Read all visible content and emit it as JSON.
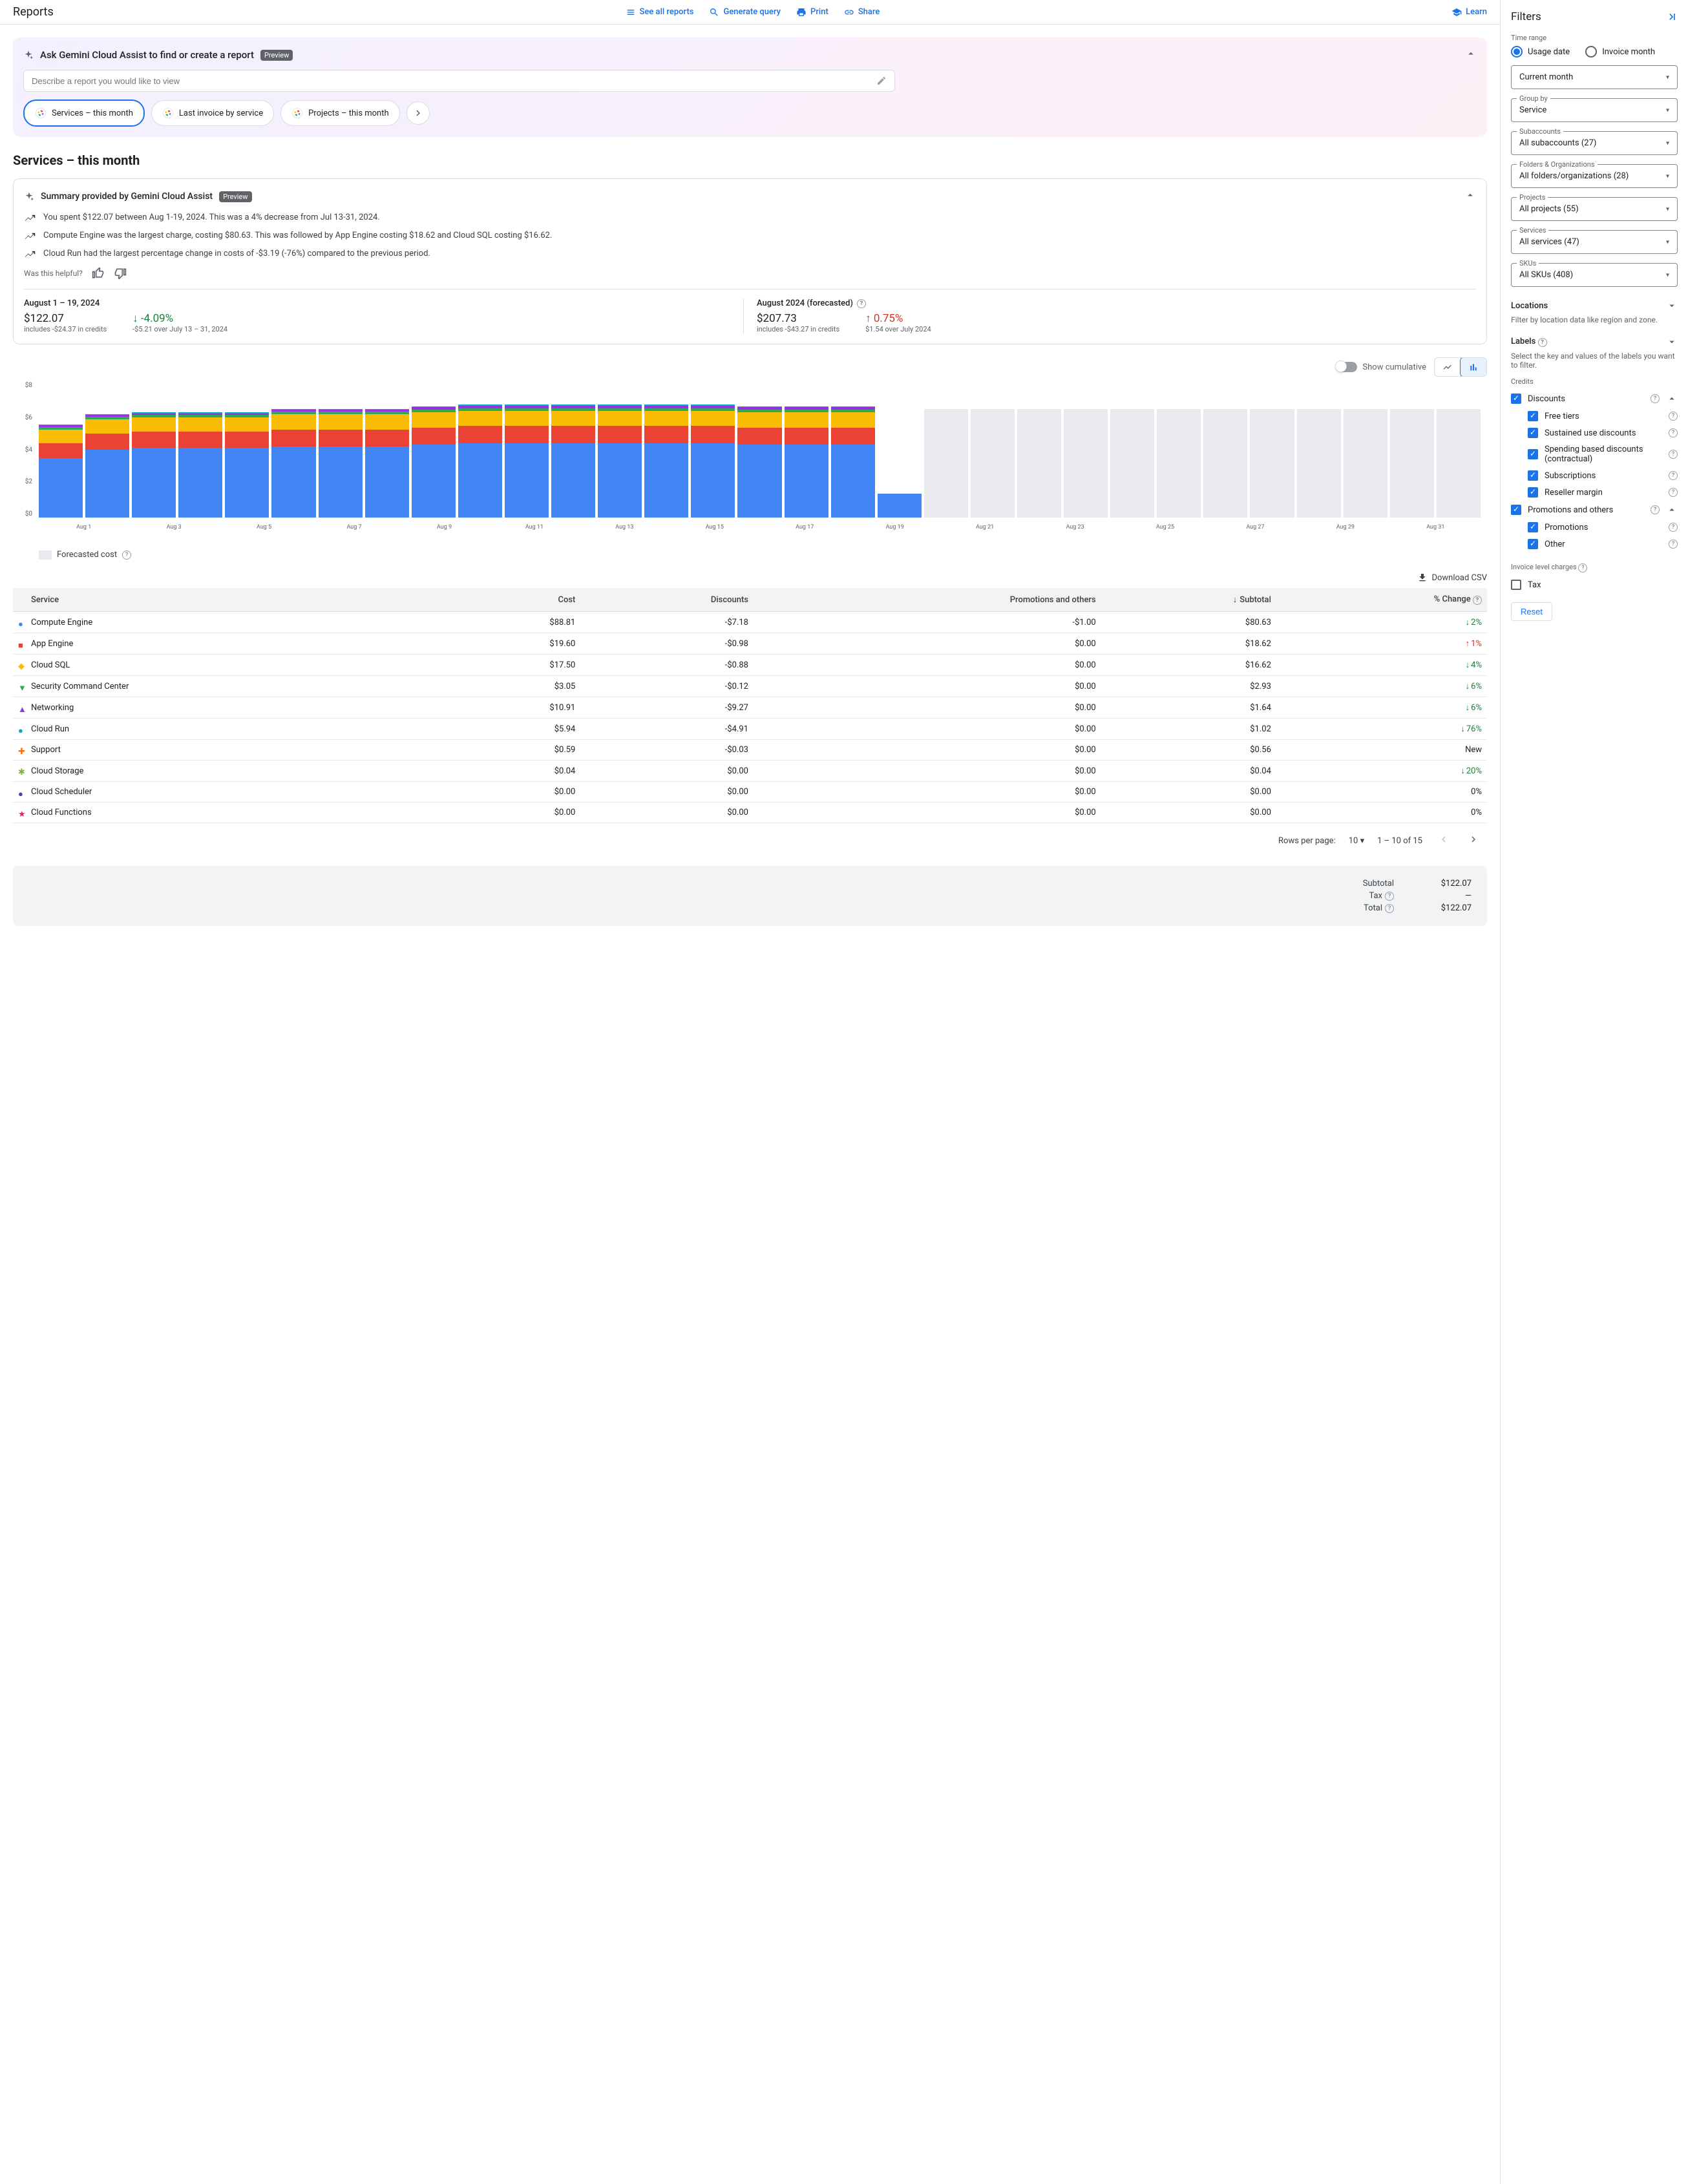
{
  "header": {
    "title": "Reports",
    "see_all": "See all reports",
    "generate": "Generate query",
    "print": "Print",
    "share": "Share",
    "learn": "Learn"
  },
  "gemini": {
    "title": "Ask Gemini Cloud Assist to find or create a report",
    "preview": "Preview",
    "placeholder": "Describe a report you would like to view",
    "chip1": "Services – this month",
    "chip2": "Last invoice by service",
    "chip3": "Projects – this month"
  },
  "page_title": "Services – this month",
  "summary": {
    "title": "Summary provided by Gemini Cloud Assist",
    "preview": "Preview",
    "insight1": "You spent $122.07 between Aug 1-19, 2024. This was a 4% decrease from Jul 13-31, 2024.",
    "insight2": "Compute Engine was the largest charge, costing $80.63. This was followed by App Engine costing $18.62 and Cloud SQL costing $16.62.",
    "insight3": "Cloud Run had the largest percentage change in costs of -$3.19 (-76%) compared to the previous period.",
    "helpful": "Was this helpful?"
  },
  "stats": {
    "period1_label": "August 1 – 19, 2024",
    "period1_value": "$122.07",
    "period1_sub": "includes -$24.37 in credits",
    "period1_change": "-4.09%",
    "period1_change_sub": "-$5.21 over July 13 – 31, 2024",
    "period2_label": "August 2024 (forecasted)",
    "period2_value": "$207.73",
    "period2_sub": "includes -$43.27 in credits",
    "period2_change": "0.75%",
    "period2_change_sub": "$1.54 over July 2024"
  },
  "chart": {
    "cumulative_label": "Show cumulative",
    "y_max": 8,
    "y_ticks": [
      "$8",
      "$6",
      "$4",
      "$2",
      "$0"
    ],
    "x_labels": [
      "Aug 1",
      "Aug 3",
      "Aug 5",
      "Aug 7",
      "Aug 9",
      "Aug 11",
      "Aug 13",
      "Aug 15",
      "Aug 17",
      "Aug 19",
      "Aug 21",
      "Aug 23",
      "Aug 25",
      "Aug 27",
      "Aug 29",
      "Aug 31"
    ],
    "colors": {
      "compute": "#4285f4",
      "appengine": "#ea4335",
      "cloudsql": "#fbbc04",
      "security": "#34a853",
      "networking": "#9334e6",
      "other": "#00acc1",
      "forecast": "#e8eaed"
    },
    "bars": [
      {
        "segs": [
          3.5,
          0.9,
          0.8,
          0.15,
          0.1,
          0.05
        ],
        "forecast": false
      },
      {
        "segs": [
          4.0,
          0.95,
          0.85,
          0.15,
          0.1,
          0.05
        ],
        "forecast": false
      },
      {
        "segs": [
          4.1,
          0.95,
          0.85,
          0.15,
          0.1,
          0.05
        ],
        "forecast": false
      },
      {
        "segs": [
          4.1,
          0.95,
          0.85,
          0.15,
          0.1,
          0.05
        ],
        "forecast": false
      },
      {
        "segs": [
          4.1,
          0.95,
          0.85,
          0.15,
          0.1,
          0.05
        ],
        "forecast": false
      },
      {
        "segs": [
          4.2,
          1.0,
          0.9,
          0.15,
          0.1,
          0.05
        ],
        "forecast": false
      },
      {
        "segs": [
          4.2,
          1.0,
          0.9,
          0.15,
          0.1,
          0.05
        ],
        "forecast": false
      },
      {
        "segs": [
          4.2,
          1.0,
          0.9,
          0.15,
          0.1,
          0.05
        ],
        "forecast": false
      },
      {
        "segs": [
          4.3,
          1.0,
          0.9,
          0.15,
          0.15,
          0.05
        ],
        "forecast": false
      },
      {
        "segs": [
          4.4,
          1.0,
          0.9,
          0.15,
          0.15,
          0.05
        ],
        "forecast": false
      },
      {
        "segs": [
          4.4,
          1.0,
          0.9,
          0.15,
          0.15,
          0.05
        ],
        "forecast": false
      },
      {
        "segs": [
          4.4,
          1.0,
          0.9,
          0.15,
          0.15,
          0.05
        ],
        "forecast": false
      },
      {
        "segs": [
          4.4,
          1.0,
          0.9,
          0.15,
          0.15,
          0.05
        ],
        "forecast": false
      },
      {
        "segs": [
          4.4,
          1.0,
          0.9,
          0.15,
          0.15,
          0.05
        ],
        "forecast": false
      },
      {
        "segs": [
          4.4,
          1.0,
          0.9,
          0.15,
          0.15,
          0.05
        ],
        "forecast": false
      },
      {
        "segs": [
          4.3,
          1.0,
          0.9,
          0.15,
          0.15,
          0.05
        ],
        "forecast": false
      },
      {
        "segs": [
          4.3,
          1.0,
          0.9,
          0.15,
          0.15,
          0.05
        ],
        "forecast": false
      },
      {
        "segs": [
          4.3,
          1.0,
          0.9,
          0.15,
          0.15,
          0.05
        ],
        "forecast": false
      },
      {
        "segs": [
          1.4,
          0,
          0,
          0,
          0,
          0
        ],
        "forecast": false
      },
      {
        "segs": [
          6.4
        ],
        "forecast": true
      },
      {
        "segs": [
          6.4
        ],
        "forecast": true
      },
      {
        "segs": [
          6.4
        ],
        "forecast": true
      },
      {
        "segs": [
          6.4
        ],
        "forecast": true
      },
      {
        "segs": [
          6.4
        ],
        "forecast": true
      },
      {
        "segs": [
          6.4
        ],
        "forecast": true
      },
      {
        "segs": [
          6.4
        ],
        "forecast": true
      },
      {
        "segs": [
          6.4
        ],
        "forecast": true
      },
      {
        "segs": [
          6.4
        ],
        "forecast": true
      },
      {
        "segs": [
          6.4
        ],
        "forecast": true
      },
      {
        "segs": [
          6.4
        ],
        "forecast": true
      },
      {
        "segs": [
          6.4
        ],
        "forecast": true
      }
    ],
    "legend_forecast": "Forecasted cost"
  },
  "download_csv": "Download CSV",
  "table": {
    "headers": {
      "service": "Service",
      "cost": "Cost",
      "discounts": "Discounts",
      "promotions": "Promotions and others",
      "subtotal": "Subtotal",
      "change": "% Change"
    },
    "rows": [
      {
        "marker": "●",
        "color": "#4285f4",
        "service": "Compute Engine",
        "cost": "$88.81",
        "discounts": "-$7.18",
        "promo": "-$1.00",
        "subtotal": "$80.63",
        "change": "2%",
        "dir": "down"
      },
      {
        "marker": "■",
        "color": "#ea4335",
        "service": "App Engine",
        "cost": "$19.60",
        "discounts": "-$0.98",
        "promo": "$0.00",
        "subtotal": "$18.62",
        "change": "1%",
        "dir": "up"
      },
      {
        "marker": "◆",
        "color": "#fbbc04",
        "service": "Cloud SQL",
        "cost": "$17.50",
        "discounts": "-$0.88",
        "promo": "$0.00",
        "subtotal": "$16.62",
        "change": "4%",
        "dir": "down"
      },
      {
        "marker": "▼",
        "color": "#34a853",
        "service": "Security Command Center",
        "cost": "$3.05",
        "discounts": "-$0.12",
        "promo": "$0.00",
        "subtotal": "$2.93",
        "change": "6%",
        "dir": "down"
      },
      {
        "marker": "▲",
        "color": "#9334e6",
        "service": "Networking",
        "cost": "$10.91",
        "discounts": "-$9.27",
        "promo": "$0.00",
        "subtotal": "$1.64",
        "change": "6%",
        "dir": "down"
      },
      {
        "marker": "●",
        "color": "#00acc1",
        "service": "Cloud Run",
        "cost": "$5.94",
        "discounts": "-$4.91",
        "promo": "$0.00",
        "subtotal": "$1.02",
        "change": "76%",
        "dir": "down"
      },
      {
        "marker": "✚",
        "color": "#ff6d01",
        "service": "Support",
        "cost": "$0.59",
        "discounts": "-$0.03",
        "promo": "$0.00",
        "subtotal": "$0.56",
        "change": "New",
        "dir": "none"
      },
      {
        "marker": "✱",
        "color": "#7cb342",
        "service": "Cloud Storage",
        "cost": "$0.04",
        "discounts": "$0.00",
        "promo": "$0.00",
        "subtotal": "$0.04",
        "change": "20%",
        "dir": "down"
      },
      {
        "marker": "●",
        "color": "#3949ab",
        "service": "Cloud Scheduler",
        "cost": "$0.00",
        "discounts": "$0.00",
        "promo": "$0.00",
        "subtotal": "$0.00",
        "change": "0%",
        "dir": "none"
      },
      {
        "marker": "★",
        "color": "#e91e63",
        "service": "Cloud Functions",
        "cost": "$0.00",
        "discounts": "$0.00",
        "promo": "$0.00",
        "subtotal": "$0.00",
        "change": "0%",
        "dir": "none"
      }
    ]
  },
  "pagination": {
    "rows_label": "Rows per page:",
    "rows_value": "10",
    "range": "1 – 10 of 15"
  },
  "totals": {
    "subtotal_label": "Subtotal",
    "subtotal_value": "$122.07",
    "tax_label": "Tax",
    "tax_value": "—",
    "total_label": "Total",
    "total_value": "$122.07"
  },
  "filters": {
    "title": "Filters",
    "time_range": "Time range",
    "usage_date": "Usage date",
    "invoice_month": "Invoice month",
    "current_month": "Current month",
    "group_by": "Group by",
    "group_by_value": "Service",
    "subaccounts": "Subaccounts",
    "subaccounts_value": "All subaccounts (27)",
    "folders": "Folders & Organizations",
    "folders_value": "All folders/organizations (28)",
    "projects": "Projects",
    "projects_value": "All projects (55)",
    "services": "Services",
    "services_value": "All services (47)",
    "skus": "SKUs",
    "skus_value": "All SKUs (408)",
    "locations": "Locations",
    "locations_desc": "Filter by location data like region and zone.",
    "labels": "Labels",
    "labels_desc": "Select the key and values of the labels you want to filter.",
    "credits": "Credits",
    "discounts": "Discounts",
    "free_tiers": "Free tiers",
    "sustained": "Sustained use discounts",
    "spending": "Spending based discounts (contractual)",
    "subscriptions": "Subscriptions",
    "reseller": "Reseller margin",
    "promotions_others": "Promotions and others",
    "promotions": "Promotions",
    "other": "Other",
    "invoice_level": "Invoice level charges",
    "tax": "Tax",
    "reset": "Reset"
  }
}
